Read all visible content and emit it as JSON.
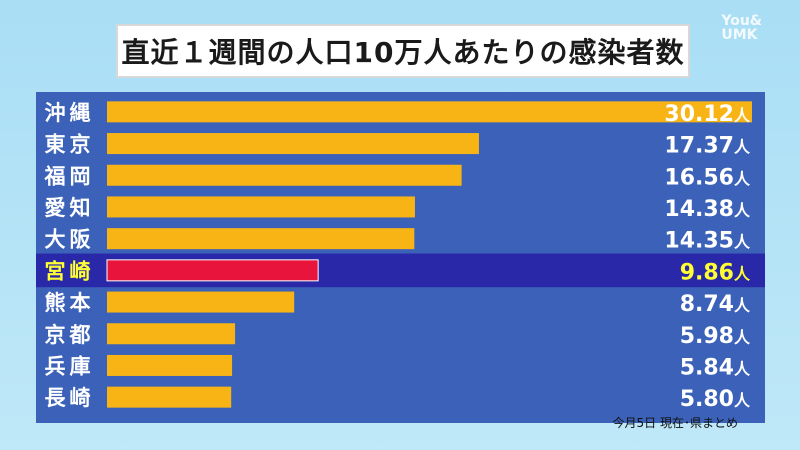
{
  "header": {
    "title": "直近１週間の人口10万人あたりの感染者数"
  },
  "logo": {
    "line1": "You&",
    "line2": "UMK"
  },
  "footnote": "今月5日 現在･県まとめ",
  "colors": {
    "panel": "#3b62b8",
    "bar": "#f8b415",
    "highlight_bar": "#e8143c",
    "highlight_row": "#2828a8",
    "highlight_text": "#ffff33"
  },
  "chart_data": {
    "type": "bar",
    "orientation": "horizontal",
    "title": "直近１週間の人口10万人あたりの感染者数",
    "categories": [
      "沖縄",
      "東京",
      "福岡",
      "愛知",
      "大阪",
      "宮崎",
      "熊本",
      "京都",
      "兵庫",
      "長崎"
    ],
    "values": [
      30.12,
      17.37,
      16.56,
      14.38,
      14.35,
      9.86,
      8.74,
      5.98,
      5.84,
      5.8
    ],
    "value_labels": [
      "30.12",
      "17.37",
      "16.56",
      "14.38",
      "14.35",
      "9.86",
      "8.74",
      "5.98",
      "5.84",
      "5.80"
    ],
    "unit": "人",
    "highlight_index": 5,
    "xlim": [
      0,
      30.12
    ],
    "grid": false,
    "legend": "none"
  }
}
